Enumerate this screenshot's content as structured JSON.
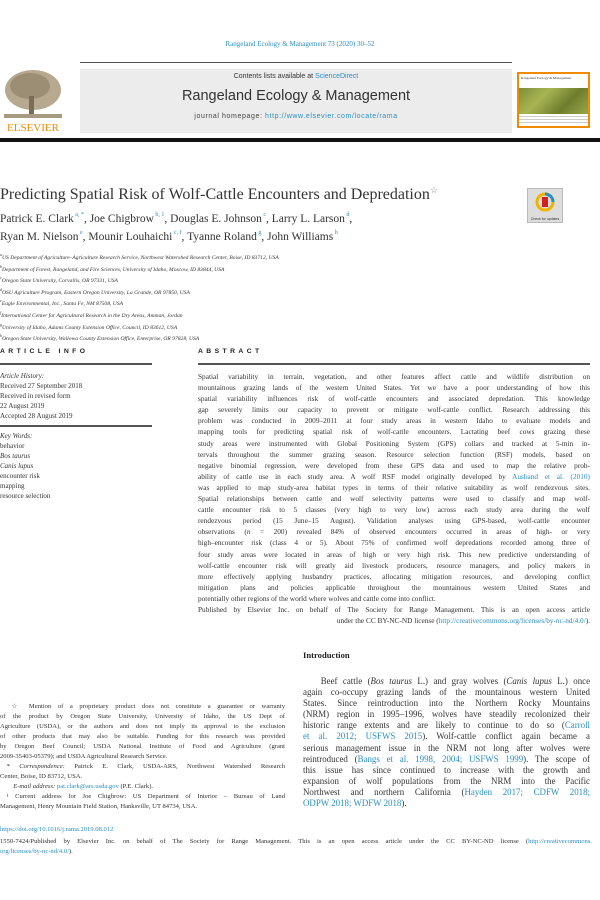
{
  "journal_citation": "Rangeland Ecology & Management 73 (2020) 30–52",
  "masthead": {
    "contents_prefix": "Contents lists available at ",
    "contents_link": "ScienceDirect",
    "journal_title": "Rangeland Ecology & Management",
    "homepage_prefix": "journal homepage: ",
    "homepage_link": "http://www.elsevier.com/locate/rama",
    "publisher_logo": "ELSEVIER",
    "cover_title": "Rangeland Ecology & Management",
    "accent_color": "#f08a00"
  },
  "article": {
    "title": "Predicting Spatial Risk of Wolf-Cattle Encounters and Depredation",
    "title_mark": "☆",
    "check_updates": "Check for updates",
    "authors": [
      [
        {
          "name": "Patrick E. Clark",
          "sup": "a, *"
        },
        {
          "name": ", Joe Chigbrow",
          "sup": "b, 1"
        },
        {
          "name": ", Douglas E. Johnson",
          "sup": "c"
        },
        {
          "name": ", Larry L. Larson",
          "sup": "d"
        },
        {
          "name": ",",
          "sup": ""
        }
      ],
      [
        {
          "name": "Ryan M. Nielson",
          "sup": "e"
        },
        {
          "name": ", Mounir Louhaichi",
          "sup": "c, f"
        },
        {
          "name": ", Tyanne Roland",
          "sup": "g"
        },
        {
          "name": ", John Williams",
          "sup": "h"
        }
      ]
    ],
    "affiliations": [
      {
        "sup": "a",
        "text": "US Department of Agriculture–Agriculture Research Service, Northwest Watershed Research Center, Boise, ID 83712, USA"
      },
      {
        "sup": "b",
        "text": "Department of Forest, Rangeland, and Fire Sciences, University of Idaho, Moscow, ID 83844, USA"
      },
      {
        "sup": "c",
        "text": "Oregon State University, Corvallis, OR 97331, USA"
      },
      {
        "sup": "d",
        "text": "OSU Agriculture Program, Eastern Oregon University, La Grande, OR 97850, USA"
      },
      {
        "sup": "e",
        "text": "Eagle Environmental, Inc., Santa Fe, NM 87508, USA"
      },
      {
        "sup": "f",
        "text": "International Center for Agricultural Research in the Dry Areas, Amman, Jordan"
      },
      {
        "sup": "g",
        "text": "University of Idaho, Adams County Extension Office, Council, ID 83612, USA"
      },
      {
        "sup": "h",
        "text": "Oregon State University, Wallowa County Extension Office, Enterprise, OR 97828, USA"
      }
    ]
  },
  "article_info": {
    "heading": "ARTICLE INFO",
    "history_label": "Article History:",
    "history": [
      "Received 27 September 2018",
      "Received in revised form",
      "22 August 2019",
      "Accepted 28 August 2019"
    ],
    "keywords_label": "Key Words:",
    "keywords": [
      {
        "t": "behavior",
        "i": false
      },
      {
        "t": "Bos taurus",
        "i": true
      },
      {
        "t": "Canis lupus",
        "i": true
      },
      {
        "t": "encounter risk",
        "i": false
      },
      {
        "t": "mapping",
        "i": false
      },
      {
        "t": "resource selection",
        "i": false
      }
    ]
  },
  "abstract": {
    "heading": "ABSTRACT",
    "lines": [
      {
        "a": "j",
        "s": [
          {
            "t": "Spatial variability in terrain, vegetation, and other features affect cattle and wildlife distribution on"
          }
        ]
      },
      {
        "a": "j",
        "s": [
          {
            "t": "mountainous grazing lands of the western United States. Yet we have a poor understanding of how this"
          }
        ]
      },
      {
        "a": "j",
        "s": [
          {
            "t": "spatial variability influences risk of wolf-cattle encounters and associated depredation. This knowledge"
          }
        ]
      },
      {
        "a": "j",
        "s": [
          {
            "t": "gap severely limits our capacity to prevent or mitigate wolf-cattle conflict. Research addressing this"
          }
        ]
      },
      {
        "a": "j",
        "s": [
          {
            "t": "problem was conducted in 2009–2011 at four study areas in western Idaho to evaluate models and"
          }
        ]
      },
      {
        "a": "j",
        "s": [
          {
            "t": "mapping tools for predicting spatial risk of wolf-cattle encounters. Lactating beef cows grazing these"
          }
        ]
      },
      {
        "a": "j",
        "s": [
          {
            "t": "study areas were instrumented with Global Positioning System (GPS) collars and tracked at 5-min in-"
          }
        ]
      },
      {
        "a": "j",
        "s": [
          {
            "t": "tervals throughout the summer grazing season. Resource selection function (RSF) models, based on"
          }
        ]
      },
      {
        "a": "j",
        "s": [
          {
            "t": "negative binomial regression, were developed from these GPS data and used to map the relative prob-"
          }
        ]
      },
      {
        "a": "j",
        "s": [
          {
            "t": "ability of cattle use in each study area. A wolf RSF model originally developed by "
          },
          {
            "t": "Ausband et al. (2010)",
            "l": true
          }
        ]
      },
      {
        "a": "j",
        "s": [
          {
            "t": "was applied to map study-area habitat types in terms of their relative suitability as wolf rendezvous sites."
          }
        ]
      },
      {
        "a": "j",
        "s": [
          {
            "t": "Spatial relationships between cattle and wolf selectivity patterns were used to classify and map wolf-"
          }
        ]
      },
      {
        "a": "j",
        "s": [
          {
            "t": "cattle encounter risk to 5 classes (very high to very low) across each study area during the wolf"
          }
        ]
      },
      {
        "a": "j",
        "s": [
          {
            "t": "rendezvous period (15 June–15 August). Validation analyses using GPS-based, wolf-cattle encounter"
          }
        ]
      },
      {
        "a": "j",
        "s": [
          {
            "t": "observations ("
          },
          {
            "t": "n",
            "i": true
          },
          {
            "t": " = 200) revealed 84% of observed encounters occurred in areas of high- or very"
          }
        ]
      },
      {
        "a": "j",
        "s": [
          {
            "t": "high–encounter risk (class 4 or 5). About 75% of confirmed wolf depredations recorded among three of"
          }
        ]
      },
      {
        "a": "j",
        "s": [
          {
            "t": "four study areas were located in areas of high or very high risk. This new predictive understanding of"
          }
        ]
      },
      {
        "a": "j",
        "s": [
          {
            "t": "wolf-cattle encounter risk will greatly aid livestock producers, resource managers, and policy makers in"
          }
        ]
      },
      {
        "a": "j",
        "s": [
          {
            "t": "more effectively applying husbandry practices, allocating mitigation resources, and developing conflict"
          }
        ]
      },
      {
        "a": "j",
        "s": [
          {
            "t": "mitigation plans and policies applicable throughout the mountainous western United States and"
          }
        ]
      },
      {
        "a": "l",
        "s": [
          {
            "t": "potentially other regions of the world where wolves and cattle come into conflict."
          }
        ]
      },
      {
        "a": "j",
        "s": [
          {
            "t": "Published by Elsevier Inc. on behalf of The Society for Range Management. This is an open access article"
          }
        ]
      },
      {
        "a": "r",
        "s": [
          {
            "t": "under the CC BY-NC-ND license ("
          },
          {
            "t": "http://creativecommons.org/licenses/by-nc-nd/4.0/",
            "l": true
          },
          {
            "t": ")."
          }
        ]
      }
    ]
  },
  "introduction": {
    "heading": "Introduction",
    "lines": [
      {
        "a": "j",
        "s": [
          {
            "t": "  Beef cattle ("
          },
          {
            "t": "Bos taurus",
            "i": true
          },
          {
            "t": " L.) and gray wolves ("
          },
          {
            "t": "Canis lupus",
            "i": true
          },
          {
            "t": " L.) once"
          }
        ]
      },
      {
        "a": "j",
        "s": [
          {
            "t": "again co-occupy grazing lands of the mountainous western United"
          }
        ]
      },
      {
        "a": "j",
        "s": [
          {
            "t": "States. Since reintroduction into the Northern Rocky Mountains"
          }
        ]
      },
      {
        "a": "j",
        "s": [
          {
            "t": "(NRM) region in 1995–1996, wolves have steadily recolonized their"
          }
        ]
      },
      {
        "a": "j",
        "s": [
          {
            "t": "historic range extents and are likely to continue to do so ("
          },
          {
            "t": "Carroll",
            "l": true
          }
        ]
      },
      {
        "a": "j",
        "s": [
          {
            "t": "et al. 2012; USFWS 2015",
            "l": true
          },
          {
            "t": "). Wolf-cattle conflict again became a"
          }
        ]
      },
      {
        "a": "j",
        "s": [
          {
            "t": "serious management issue in the NRM not long after wolves were"
          }
        ]
      },
      {
        "a": "j",
        "s": [
          {
            "t": "reintroduced ("
          },
          {
            "t": "Bangs et al. 1998, 2004; USFWS 1999",
            "l": true
          },
          {
            "t": "). The scope of"
          }
        ]
      },
      {
        "a": "j",
        "s": [
          {
            "t": "this issue has since continued to increase with the growth and"
          }
        ]
      },
      {
        "a": "j",
        "s": [
          {
            "t": "expansion of wolf populations from the NRM into the Pacific"
          }
        ]
      },
      {
        "a": "j",
        "s": [
          {
            "t": "Northwest and northern California ("
          },
          {
            "t": "Hayden 2017; CDFW 2018;",
            "l": true
          }
        ]
      },
      {
        "a": "l",
        "s": [
          {
            "t": "ODPW 2018; WDFW 2018",
            "l": true
          },
          {
            "t": ")."
          }
        ]
      }
    ]
  },
  "footnotes": {
    "lines": [
      {
        "a": "j",
        "s": [
          {
            "t": " ☆ Mention of a proprietary product does not constitute a guarantee or warranty"
          }
        ]
      },
      {
        "a": "j",
        "s": [
          {
            "t": "of the product by Oregon State University, University of Idaho, the US Dept of"
          }
        ]
      },
      {
        "a": "j",
        "s": [
          {
            "t": "Agriculture (USDA), or the authors and does not imply its approval to the exclusion"
          }
        ]
      },
      {
        "a": "j",
        "s": [
          {
            "t": "of other products that may also be suitable. Funding for this research was provided"
          }
        ]
      },
      {
        "a": "j",
        "s": [
          {
            "t": "by Oregon Beef Council; USDA National Institute of Food and Agriculture (grant"
          }
        ]
      },
      {
        "a": "l",
        "s": [
          {
            "t": "2009-35403-05379); and USDA Agricultural Research Service."
          }
        ]
      },
      {
        "a": "j",
        "s": [
          {
            "t": " * "
          },
          {
            "t": "Correspondence:",
            "i": true
          },
          {
            "t": " Patrick E. Clark, USDA-ARS, Northwest Watershed Research"
          }
        ]
      },
      {
        "a": "l",
        "s": [
          {
            "t": "Center, Boise, ID 83712, USA."
          }
        ]
      },
      {
        "a": "l",
        "s": [
          {
            "t": "  "
          },
          {
            "t": "E-mail address:",
            "i": true
          },
          {
            "t": " "
          },
          {
            "t": "pat.clark@ars.usda.gov",
            "l": true
          },
          {
            "t": " (P.E. Clark)."
          }
        ]
      },
      {
        "a": "j",
        "s": [
          {
            "t": " ¹ Current address for Joe Chigbrow: US Department of Interior – Bureau of Land"
          }
        ]
      },
      {
        "a": "l",
        "s": [
          {
            "t": "Management, Henry Mountain Field Station, Hanksville, UT 84734, USA."
          }
        ]
      }
    ],
    "doi": "https://doi.org/10.1016/j.rama.2019.08.012",
    "license_line1": "1550-7424/Published by Elsevier Inc. on behalf of The Society for Range Management. This is an open access article under the CC BY-NC-ND license (",
    "license_link1": "http://creativecommons.",
    "license_link2": "org/licenses/by-nc-nd/4.0/",
    "license_end": ")."
  }
}
